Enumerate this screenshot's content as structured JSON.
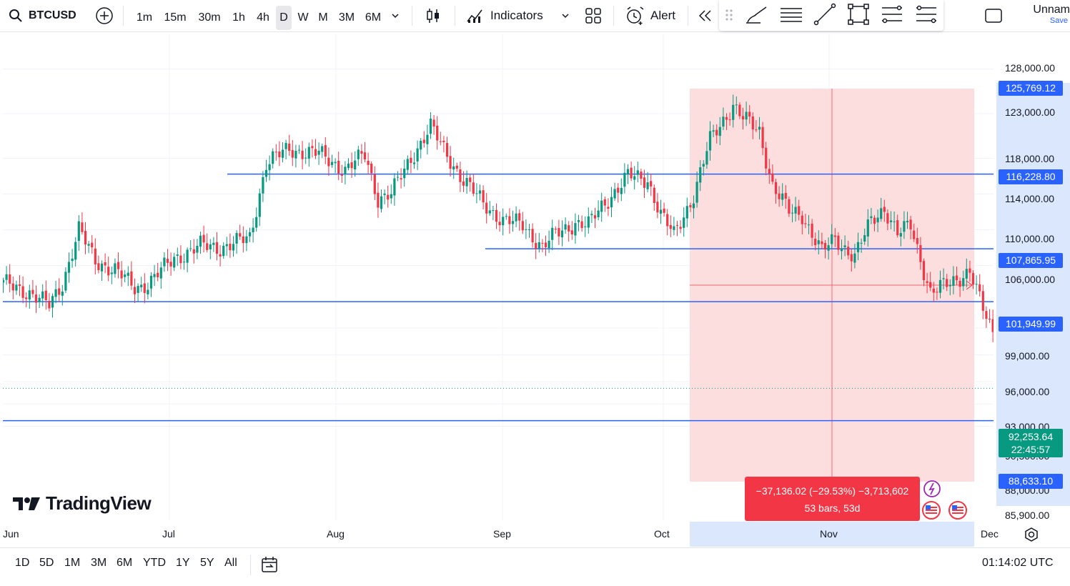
{
  "topbar": {
    "symbol": "BTCUSD",
    "timeframes": [
      "1m",
      "15m",
      "30m",
      "1h",
      "4h",
      "D",
      "W",
      "M",
      "3M",
      "6M"
    ],
    "active_timeframe": "D",
    "indicators_label": "Indicators",
    "alert_label": "Alert",
    "layout_name": "Unnam",
    "save_label": "Save"
  },
  "price_axis": {
    "ticks": [
      "128,000.00",
      "123,000.00",
      "118,000.00",
      "114,000.00",
      "110,000.00",
      "106,000.00",
      "99,000.00",
      "96,000.00",
      "93,000.00",
      "90,500.00",
      "88,000.00",
      "85,900.00"
    ],
    "badges": {
      "high": "125,769.12",
      "level1": "116,228.80",
      "level2": "107,865.95",
      "level3": "101,949.99",
      "current_price": "92,253.64",
      "countdown": "22:45:57",
      "low": "88,633.10"
    }
  },
  "time_axis": {
    "labels": [
      "Jun",
      "Jul",
      "Aug",
      "Sep",
      "Oct",
      "Nov",
      "Dec"
    ]
  },
  "measure_tool": {
    "line1": "−37,136.02 (−29.53%) −3,713,602",
    "line2": "53 bars, 53d"
  },
  "watermark": "TradingView",
  "bottombar": {
    "ranges": [
      "1D",
      "5D",
      "1M",
      "3M",
      "6M",
      "YTD",
      "1Y",
      "5Y",
      "All"
    ],
    "clock": "01:14:02 UTC"
  },
  "colors": {
    "up": "#089981",
    "down": "#f23645",
    "level_line": "#2962ff",
    "measure_fill": "#fcdede",
    "accent": "#2962ff"
  }
}
